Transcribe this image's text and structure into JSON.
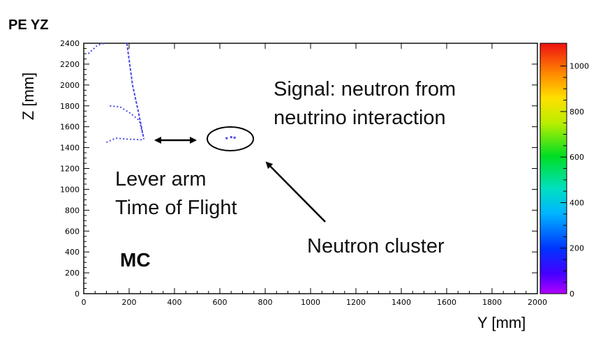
{
  "chart_data": {
    "type": "heatmap",
    "title": "PE YZ",
    "xlabel": "Y [mm]",
    "ylabel": "Z [mm]",
    "xlim": [
      0,
      2000
    ],
    "ylim": [
      0,
      2400
    ],
    "x_ticks": [
      "0",
      "200",
      "400",
      "600",
      "800",
      "1000",
      "1200",
      "1400",
      "1600",
      "1800",
      "2000"
    ],
    "y_ticks": [
      "0",
      "200",
      "400",
      "600",
      "800",
      "1000",
      "1200",
      "1400",
      "1600",
      "1800",
      "2000",
      "2200",
      "2400"
    ],
    "colorbar": {
      "range": [
        0,
        1100
      ],
      "ticks": [
        "0",
        "200",
        "400",
        "600",
        "800",
        "1000"
      ]
    },
    "series": [
      {
        "style": "dashed-track",
        "color": "#4a4ae8",
        "points": [
          [
            190,
            2400
          ],
          [
            215,
            2000
          ],
          [
            245,
            1700
          ],
          [
            265,
            1480
          ]
        ]
      },
      {
        "style": "dotted-track",
        "color": "#4a4ae8",
        "points": [
          [
            115,
            1800
          ],
          [
            160,
            1790
          ],
          [
            205,
            1730
          ],
          [
            245,
            1660
          ],
          [
            265,
            1490
          ]
        ]
      },
      {
        "style": "dotted-track",
        "color": "#4a4ae8",
        "points": [
          [
            100,
            1450
          ],
          [
            140,
            1490
          ],
          [
            200,
            1480
          ],
          [
            260,
            1475
          ]
        ]
      },
      {
        "style": "dotted-track",
        "color": "#4a4ae8",
        "points": [
          [
            20,
            2300
          ],
          [
            60,
            2380
          ],
          [
            90,
            2400
          ]
        ]
      },
      {
        "style": "cluster",
        "color": "#4a4ae8",
        "points": [
          [
            630,
            1490
          ],
          [
            650,
            1500
          ],
          [
            665,
            1495
          ]
        ]
      }
    ],
    "annotations": [
      "Signal: neutron from",
      "neutrino interaction",
      "Lever arm",
      "Time of Flight",
      "Neutron cluster",
      "MC"
    ],
    "grid": false
  }
}
